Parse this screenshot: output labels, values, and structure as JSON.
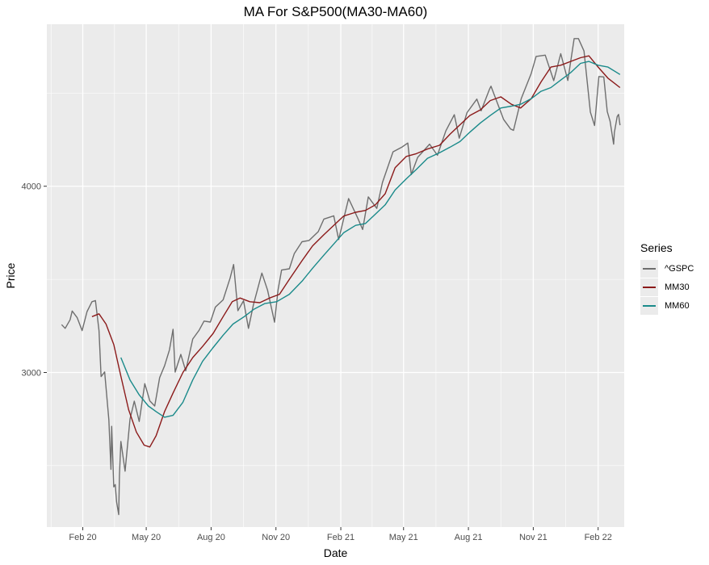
{
  "chart_data": {
    "type": "line",
    "title": "MA For S&P500(MA30-MA60)",
    "xlabel": "Date",
    "ylabel": "Price",
    "x_range": [
      "2019-12-12",
      "2022-03-10"
    ],
    "ylim": [
      2170,
      4870
    ],
    "x_ticks": [
      {
        "date": "2020-02-01",
        "label": "Feb 20"
      },
      {
        "date": "2020-05-01",
        "label": "May 20"
      },
      {
        "date": "2020-08-01",
        "label": "Aug 20"
      },
      {
        "date": "2020-11-01",
        "label": "Nov 20"
      },
      {
        "date": "2021-02-01",
        "label": "Feb 21"
      },
      {
        "date": "2021-05-01",
        "label": "May 21"
      },
      {
        "date": "2021-08-01",
        "label": "Aug 21"
      },
      {
        "date": "2021-11-01",
        "label": "Nov 21"
      },
      {
        "date": "2022-02-01",
        "label": "Feb 22"
      }
    ],
    "y_ticks": [
      3000,
      4000
    ],
    "y_minor_ticks": [
      2500,
      3500,
      4500
    ],
    "grid": true,
    "legend": {
      "title": "Series",
      "position": "right"
    },
    "series": [
      {
        "name": "^GSPC",
        "color": "#6e6e6e",
        "points": [
          [
            "2020-01-02",
            3257
          ],
          [
            "2020-01-07",
            3237
          ],
          [
            "2020-01-14",
            3283
          ],
          [
            "2020-01-17",
            3330
          ],
          [
            "2020-01-24",
            3295
          ],
          [
            "2020-01-31",
            3225
          ],
          [
            "2020-02-07",
            3327
          ],
          [
            "2020-02-14",
            3380
          ],
          [
            "2020-02-19",
            3386
          ],
          [
            "2020-02-24",
            3225
          ],
          [
            "2020-02-27",
            2978
          ],
          [
            "2020-03-03",
            3003
          ],
          [
            "2020-03-09",
            2746
          ],
          [
            "2020-03-12",
            2480
          ],
          [
            "2020-03-13",
            2711
          ],
          [
            "2020-03-16",
            2386
          ],
          [
            "2020-03-18",
            2398
          ],
          [
            "2020-03-20",
            2305
          ],
          [
            "2020-03-23",
            2237
          ],
          [
            "2020-03-24",
            2447
          ],
          [
            "2020-03-26",
            2630
          ],
          [
            "2020-04-01",
            2470
          ],
          [
            "2020-04-08",
            2750
          ],
          [
            "2020-04-14",
            2846
          ],
          [
            "2020-04-21",
            2737
          ],
          [
            "2020-04-29",
            2940
          ],
          [
            "2020-05-06",
            2848
          ],
          [
            "2020-05-13",
            2820
          ],
          [
            "2020-05-20",
            2972
          ],
          [
            "2020-05-27",
            3036
          ],
          [
            "2020-06-03",
            3122
          ],
          [
            "2020-06-08",
            3232
          ],
          [
            "2020-06-11",
            3002
          ],
          [
            "2020-06-19",
            3097
          ],
          [
            "2020-06-26",
            3009
          ],
          [
            "2020-07-06",
            3180
          ],
          [
            "2020-07-15",
            3227
          ],
          [
            "2020-07-22",
            3276
          ],
          [
            "2020-07-31",
            3271
          ],
          [
            "2020-08-07",
            3351
          ],
          [
            "2020-08-18",
            3390
          ],
          [
            "2020-08-28",
            3508
          ],
          [
            "2020-09-02",
            3580
          ],
          [
            "2020-09-08",
            3332
          ],
          [
            "2020-09-16",
            3385
          ],
          [
            "2020-09-23",
            3237
          ],
          [
            "2020-09-30",
            3363
          ],
          [
            "2020-10-12",
            3534
          ],
          [
            "2020-10-20",
            3443
          ],
          [
            "2020-10-30",
            3270
          ],
          [
            "2020-11-04",
            3443
          ],
          [
            "2020-11-09",
            3550
          ],
          [
            "2020-11-20",
            3557
          ],
          [
            "2020-11-27",
            3638
          ],
          [
            "2020-12-08",
            3702
          ],
          [
            "2020-12-18",
            3709
          ],
          [
            "2020-12-31",
            3756
          ],
          [
            "2021-01-08",
            3824
          ],
          [
            "2021-01-22",
            3841
          ],
          [
            "2021-01-29",
            3714
          ],
          [
            "2021-02-12",
            3934
          ],
          [
            "2021-02-25",
            3829
          ],
          [
            "2021-03-04",
            3768
          ],
          [
            "2021-03-12",
            3943
          ],
          [
            "2021-03-24",
            3881
          ],
          [
            "2021-04-01",
            4020
          ],
          [
            "2021-04-16",
            4185
          ],
          [
            "2021-04-29",
            4211
          ],
          [
            "2021-05-07",
            4232
          ],
          [
            "2021-05-12",
            4063
          ],
          [
            "2021-05-21",
            4155
          ],
          [
            "2021-06-07",
            4226
          ],
          [
            "2021-06-18",
            4166
          ],
          [
            "2021-06-30",
            4297
          ],
          [
            "2021-07-12",
            4384
          ],
          [
            "2021-07-19",
            4258
          ],
          [
            "2021-07-30",
            4395
          ],
          [
            "2021-08-13",
            4468
          ],
          [
            "2021-08-19",
            4405
          ],
          [
            "2021-08-31",
            4522
          ],
          [
            "2021-09-02",
            4537
          ],
          [
            "2021-09-20",
            4358
          ],
          [
            "2021-09-30",
            4307
          ],
          [
            "2021-10-04",
            4300
          ],
          [
            "2021-10-15",
            4471
          ],
          [
            "2021-10-29",
            4605
          ],
          [
            "2021-11-05",
            4697
          ],
          [
            "2021-11-18",
            4704
          ],
          [
            "2021-11-30",
            4567
          ],
          [
            "2021-12-10",
            4712
          ],
          [
            "2021-12-20",
            4568
          ],
          [
            "2021-12-29",
            4793
          ],
          [
            "2022-01-04",
            4793
          ],
          [
            "2022-01-12",
            4726
          ],
          [
            "2022-01-21",
            4398
          ],
          [
            "2022-01-27",
            4326
          ],
          [
            "2022-02-02",
            4589
          ],
          [
            "2022-02-09",
            4587
          ],
          [
            "2022-02-14",
            4401
          ],
          [
            "2022-02-18",
            4349
          ],
          [
            "2022-02-23",
            4226
          ],
          [
            "2022-02-24",
            4288
          ],
          [
            "2022-02-28",
            4374
          ],
          [
            "2022-03-02",
            4386
          ],
          [
            "2022-03-04",
            4328
          ]
        ]
      },
      {
        "name": "MM30",
        "color": "#8b1a1a",
        "points": [
          [
            "2020-02-14",
            3300
          ],
          [
            "2020-02-24",
            3315
          ],
          [
            "2020-03-05",
            3260
          ],
          [
            "2020-03-16",
            3150
          ],
          [
            "2020-03-26",
            2980
          ],
          [
            "2020-04-06",
            2800
          ],
          [
            "2020-04-17",
            2680
          ],
          [
            "2020-04-28",
            2610
          ],
          [
            "2020-05-06",
            2600
          ],
          [
            "2020-05-15",
            2660
          ],
          [
            "2020-05-27",
            2790
          ],
          [
            "2020-06-08",
            2890
          ],
          [
            "2020-06-22",
            3000
          ],
          [
            "2020-07-06",
            3080
          ],
          [
            "2020-07-20",
            3140
          ],
          [
            "2020-08-04",
            3210
          ],
          [
            "2020-08-18",
            3300
          ],
          [
            "2020-08-31",
            3380
          ],
          [
            "2020-09-11",
            3400
          ],
          [
            "2020-09-25",
            3380
          ],
          [
            "2020-10-09",
            3375
          ],
          [
            "2020-10-23",
            3400
          ],
          [
            "2020-11-06",
            3420
          ],
          [
            "2020-11-20",
            3500
          ],
          [
            "2020-12-08",
            3600
          ],
          [
            "2020-12-23",
            3680
          ],
          [
            "2021-01-08",
            3740
          ],
          [
            "2021-01-22",
            3790
          ],
          [
            "2021-02-05",
            3840
          ],
          [
            "2021-02-22",
            3860
          ],
          [
            "2021-03-08",
            3870
          ],
          [
            "2021-03-22",
            3900
          ],
          [
            "2021-04-05",
            3960
          ],
          [
            "2021-04-19",
            4100
          ],
          [
            "2021-05-05",
            4160
          ],
          [
            "2021-05-19",
            4175
          ],
          [
            "2021-06-04",
            4200
          ],
          [
            "2021-06-21",
            4220
          ],
          [
            "2021-07-06",
            4280
          ],
          [
            "2021-07-20",
            4330
          ],
          [
            "2021-08-03",
            4380
          ],
          [
            "2021-08-18",
            4410
          ],
          [
            "2021-09-01",
            4460
          ],
          [
            "2021-09-16",
            4480
          ],
          [
            "2021-10-01",
            4440
          ],
          [
            "2021-10-14",
            4420
          ],
          [
            "2021-10-29",
            4470
          ],
          [
            "2021-11-12",
            4560
          ],
          [
            "2021-11-26",
            4640
          ],
          [
            "2021-12-10",
            4650
          ],
          [
            "2021-12-24",
            4670
          ],
          [
            "2022-01-07",
            4690
          ],
          [
            "2022-01-19",
            4700
          ],
          [
            "2022-02-01",
            4640
          ],
          [
            "2022-02-15",
            4580
          ],
          [
            "2022-03-04",
            4530
          ]
        ]
      },
      {
        "name": "MM60",
        "color": "#1a8a8a",
        "points": [
          [
            "2020-03-26",
            3080
          ],
          [
            "2020-04-08",
            2960
          ],
          [
            "2020-04-21",
            2880
          ],
          [
            "2020-05-04",
            2820
          ],
          [
            "2020-05-15",
            2790
          ],
          [
            "2020-05-27",
            2760
          ],
          [
            "2020-06-08",
            2770
          ],
          [
            "2020-06-22",
            2840
          ],
          [
            "2020-07-06",
            2960
          ],
          [
            "2020-07-20",
            3060
          ],
          [
            "2020-08-03",
            3130
          ],
          [
            "2020-08-18",
            3200
          ],
          [
            "2020-09-01",
            3260
          ],
          [
            "2020-09-17",
            3300
          ],
          [
            "2020-10-01",
            3340
          ],
          [
            "2020-10-16",
            3370
          ],
          [
            "2020-11-02",
            3380
          ],
          [
            "2020-11-20",
            3420
          ],
          [
            "2020-12-08",
            3490
          ],
          [
            "2020-12-23",
            3560
          ],
          [
            "2021-01-08",
            3630
          ],
          [
            "2021-01-22",
            3690
          ],
          [
            "2021-02-05",
            3750
          ],
          [
            "2021-02-22",
            3790
          ],
          [
            "2021-03-08",
            3800
          ],
          [
            "2021-03-22",
            3850
          ],
          [
            "2021-04-05",
            3900
          ],
          [
            "2021-04-19",
            3980
          ],
          [
            "2021-05-05",
            4040
          ],
          [
            "2021-05-19",
            4090
          ],
          [
            "2021-06-04",
            4150
          ],
          [
            "2021-06-21",
            4180
          ],
          [
            "2021-07-06",
            4210
          ],
          [
            "2021-07-20",
            4240
          ],
          [
            "2021-08-03",
            4290
          ],
          [
            "2021-08-18",
            4340
          ],
          [
            "2021-09-01",
            4380
          ],
          [
            "2021-09-16",
            4420
          ],
          [
            "2021-10-01",
            4430
          ],
          [
            "2021-10-14",
            4440
          ],
          [
            "2021-10-29",
            4470
          ],
          [
            "2021-11-12",
            4510
          ],
          [
            "2021-11-26",
            4530
          ],
          [
            "2021-12-10",
            4570
          ],
          [
            "2021-12-24",
            4610
          ],
          [
            "2022-01-07",
            4660
          ],
          [
            "2022-01-19",
            4670
          ],
          [
            "2022-02-01",
            4650
          ],
          [
            "2022-02-15",
            4640
          ],
          [
            "2022-03-04",
            4600
          ]
        ]
      }
    ]
  }
}
